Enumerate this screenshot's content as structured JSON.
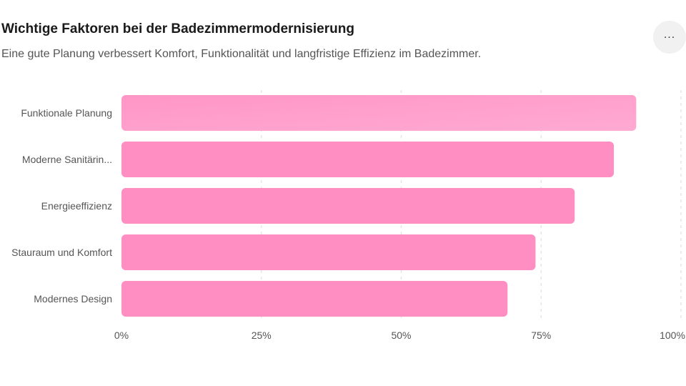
{
  "header": {
    "title": "Wichtige Faktoren bei der Badezimmermodernisierung",
    "subtitle": "Eine gute Planung verbessert Komfort, Funktionalität und langfristige Effizienz im Badezimmer.",
    "menu_icon": "more-horizontal-icon",
    "menu_glyph": "..."
  },
  "colors": {
    "bar_top": "#ffa3cf",
    "bar": "#ff8fc3",
    "grid": "#e6e6e6",
    "text": "#555555"
  },
  "chart_data": {
    "type": "bar",
    "orientation": "horizontal",
    "categories": [
      "Funktionale Planung",
      "Moderne Sanitärin...",
      "Energieeffizienz",
      "Stauraum und Komfort",
      "Modernes Design"
    ],
    "values": [
      92,
      88,
      81,
      74,
      69
    ],
    "x_ticks": [
      "0%",
      "25%",
      "50%",
      "75%",
      "100%"
    ],
    "xlim": [
      0,
      100
    ],
    "grid": true,
    "legend": "none"
  }
}
